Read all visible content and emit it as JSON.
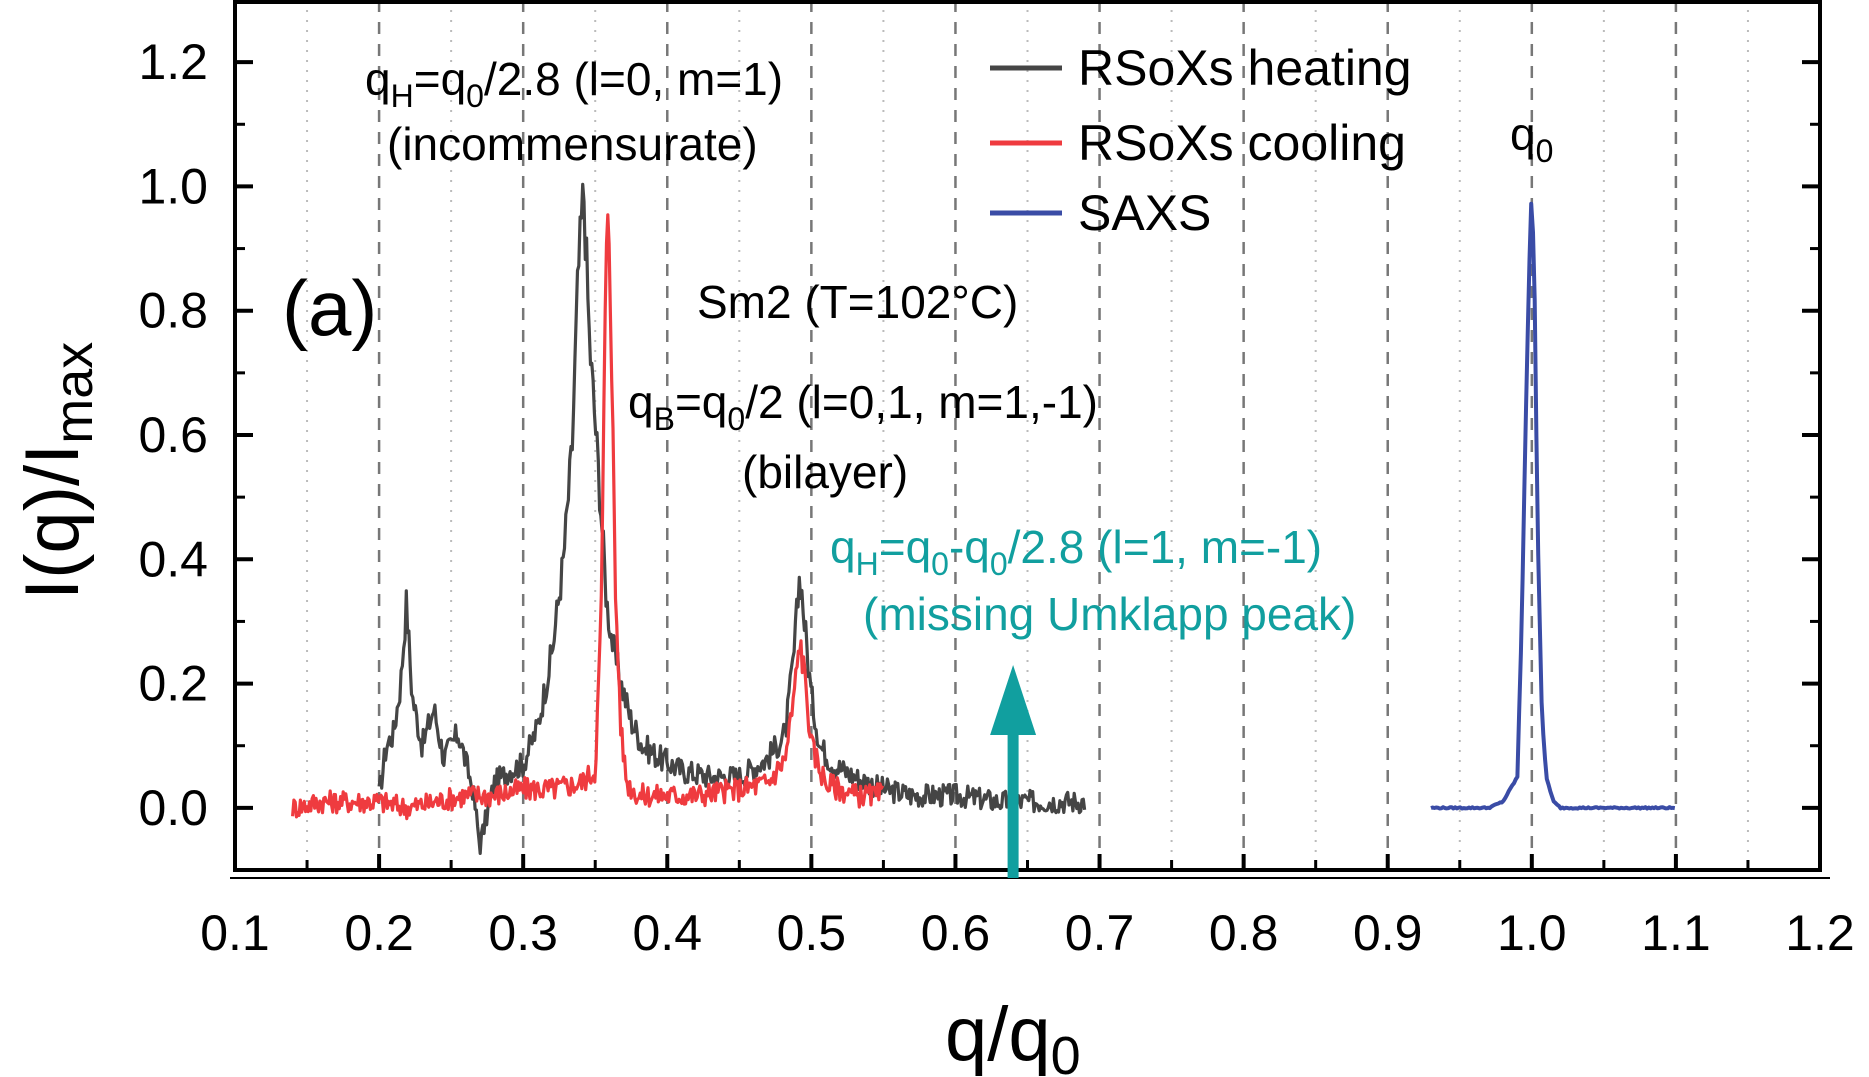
{
  "chart_data": {
    "type": "line",
    "title": "",
    "xlabel": "q/q",
    "xlabel_sub": "0",
    "ylabel": "I(q)/I",
    "ylabel_sub": "max",
    "xlim": [
      0.1,
      1.2
    ],
    "ylim": [
      -0.1,
      1.3
    ],
    "x_ticks": [
      "0.1",
      "0.2",
      "0.3",
      "0.4",
      "0.5",
      "0.6",
      "0.7",
      "0.8",
      "0.9",
      "1.0",
      "1.1",
      "1.2"
    ],
    "y_ticks": [
      "0.0",
      "0.2",
      "0.4",
      "0.6",
      "0.8",
      "1.0",
      "1.2"
    ],
    "grid": {
      "major_x": "dashed",
      "minor_x": "dotted",
      "y": "none"
    },
    "legend_position": "top-center",
    "series": [
      {
        "name": "RSoXs heating",
        "color": "#454545",
        "x_range": [
          0.2,
          0.69
        ],
        "points": [
          [
            0.2,
            0.02
          ],
          [
            0.205,
            0.1
          ],
          [
            0.21,
            0.12
          ],
          [
            0.215,
            0.2
          ],
          [
            0.219,
            0.33
          ],
          [
            0.223,
            0.18
          ],
          [
            0.23,
            0.1
          ],
          [
            0.238,
            0.16
          ],
          [
            0.245,
            0.08
          ],
          [
            0.255,
            0.12
          ],
          [
            0.265,
            0.03
          ],
          [
            0.27,
            -0.06
          ],
          [
            0.28,
            0.04
          ],
          [
            0.29,
            0.06
          ],
          [
            0.3,
            0.07
          ],
          [
            0.31,
            0.13
          ],
          [
            0.32,
            0.25
          ],
          [
            0.328,
            0.4
          ],
          [
            0.334,
            0.58
          ],
          [
            0.338,
            0.85
          ],
          [
            0.342,
            1.0
          ],
          [
            0.346,
            0.75
          ],
          [
            0.35,
            0.62
          ],
          [
            0.354,
            0.48
          ],
          [
            0.358,
            0.33
          ],
          [
            0.363,
            0.25
          ],
          [
            0.368,
            0.2
          ],
          [
            0.375,
            0.14
          ],
          [
            0.383,
            0.1
          ],
          [
            0.395,
            0.08
          ],
          [
            0.41,
            0.06
          ],
          [
            0.43,
            0.05
          ],
          [
            0.45,
            0.05
          ],
          [
            0.47,
            0.08
          ],
          [
            0.482,
            0.12
          ],
          [
            0.488,
            0.25
          ],
          [
            0.492,
            0.38
          ],
          [
            0.496,
            0.28
          ],
          [
            0.5,
            0.18
          ],
          [
            0.506,
            0.1
          ],
          [
            0.515,
            0.07
          ],
          [
            0.53,
            0.05
          ],
          [
            0.55,
            0.03
          ],
          [
            0.57,
            0.02
          ],
          [
            0.6,
            0.02
          ],
          [
            0.63,
            0.01
          ],
          [
            0.66,
            0.01
          ],
          [
            0.69,
            0.01
          ]
        ]
      },
      {
        "name": "RSoXs cooling",
        "color": "#ef3b3f",
        "x_range": [
          0.14,
          0.55
        ],
        "points": [
          [
            0.14,
            0.0
          ],
          [
            0.16,
            0.01
          ],
          [
            0.18,
            0.01
          ],
          [
            0.2,
            0.01
          ],
          [
            0.22,
            0.0
          ],
          [
            0.24,
            0.01
          ],
          [
            0.26,
            0.02
          ],
          [
            0.28,
            0.02
          ],
          [
            0.3,
            0.03
          ],
          [
            0.32,
            0.03
          ],
          [
            0.34,
            0.04
          ],
          [
            0.35,
            0.06
          ],
          [
            0.354,
            0.3
          ],
          [
            0.357,
            0.8
          ],
          [
            0.359,
            1.0
          ],
          [
            0.361,
            0.78
          ],
          [
            0.364,
            0.35
          ],
          [
            0.368,
            0.12
          ],
          [
            0.372,
            0.04
          ],
          [
            0.38,
            0.02
          ],
          [
            0.4,
            0.02
          ],
          [
            0.42,
            0.02
          ],
          [
            0.45,
            0.03
          ],
          [
            0.47,
            0.04
          ],
          [
            0.482,
            0.08
          ],
          [
            0.488,
            0.18
          ],
          [
            0.492,
            0.27
          ],
          [
            0.496,
            0.2
          ],
          [
            0.5,
            0.1
          ],
          [
            0.51,
            0.04
          ],
          [
            0.53,
            0.02
          ],
          [
            0.55,
            0.02
          ]
        ]
      },
      {
        "name": "SAXS",
        "color": "#3a4ca6",
        "x_range": [
          0.93,
          1.1
        ],
        "points": [
          [
            0.93,
            0.0
          ],
          [
            0.95,
            0.0
          ],
          [
            0.97,
            0.0
          ],
          [
            0.98,
            0.01
          ],
          [
            0.99,
            0.05
          ],
          [
            0.993,
            0.3
          ],
          [
            0.996,
            0.65
          ],
          [
            0.998,
            0.85
          ],
          [
            1.0,
            1.0
          ],
          [
            1.002,
            0.82
          ],
          [
            1.004,
            0.45
          ],
          [
            1.007,
            0.15
          ],
          [
            1.01,
            0.05
          ],
          [
            1.015,
            0.01
          ],
          [
            1.02,
            0.0
          ],
          [
            1.05,
            0.0
          ],
          [
            1.08,
            0.0
          ],
          [
            1.1,
            0.0
          ]
        ]
      }
    ],
    "annotations": {
      "panel_label": "(a)",
      "phase": "Sm2 (T=102°C)",
      "peak_h_line1": {
        "a": "q",
        "a_sub": "H",
        "b": "=q",
        "b_sub": "0",
        "c": "/2.8 (l=0, m=1)"
      },
      "peak_h_line2": "(incommensurate)",
      "peak_b_line1": {
        "a": "q",
        "a_sub": "B",
        "b": "=q",
        "b_sub": "0",
        "c": "/2 (l=0,1, m=1,-1)"
      },
      "peak_b_line2": "(bilayer)",
      "umklapp_line1": {
        "a": "q",
        "a_sub": "H",
        "b": "=q",
        "b_sub": "0",
        "c": "-q",
        "c_sub": "0",
        "d": "/2.8 (l=1, m=-1)"
      },
      "umklapp_line2": "(missing Umklapp peak)",
      "umklapp_color": "#119f9f",
      "umklapp_arrow_x": 0.64,
      "q0_label": {
        "a": "q",
        "a_sub": "0"
      }
    }
  }
}
